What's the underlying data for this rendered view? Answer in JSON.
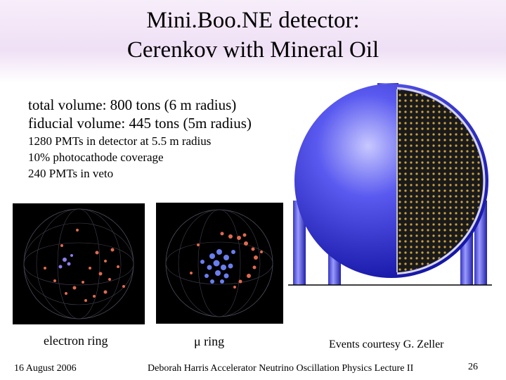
{
  "title_line1": "Mini.Boo.NE detector:",
  "title_line2": "Cerenkov with Mineral Oil",
  "volume_line": "total volume:      800 tons (6 m radius)",
  "fiducial_line": "fiducial volume: 445 tons (5m radius)",
  "pmt_line": "1280 PMTs in detector at 5.5 m radius",
  "coverage_line": "10% photocathode coverage",
  "veto_line": "240 PMTs in veto",
  "captions": {
    "electron": "electron ring",
    "muon": "μ ring",
    "courtesy": "Events courtesy G. Zeller"
  },
  "footer": {
    "date": "16 August 2006",
    "author": "Deborah Harris  Accelerator Neutrino Oscillation Physics Lecture II",
    "page": "26"
  },
  "colors": {
    "tank_blue": "#2a2ae0",
    "pmt_gold": "#c9a040",
    "hit_red": "#e06a50",
    "hit_blue": "#6a7ef0"
  }
}
